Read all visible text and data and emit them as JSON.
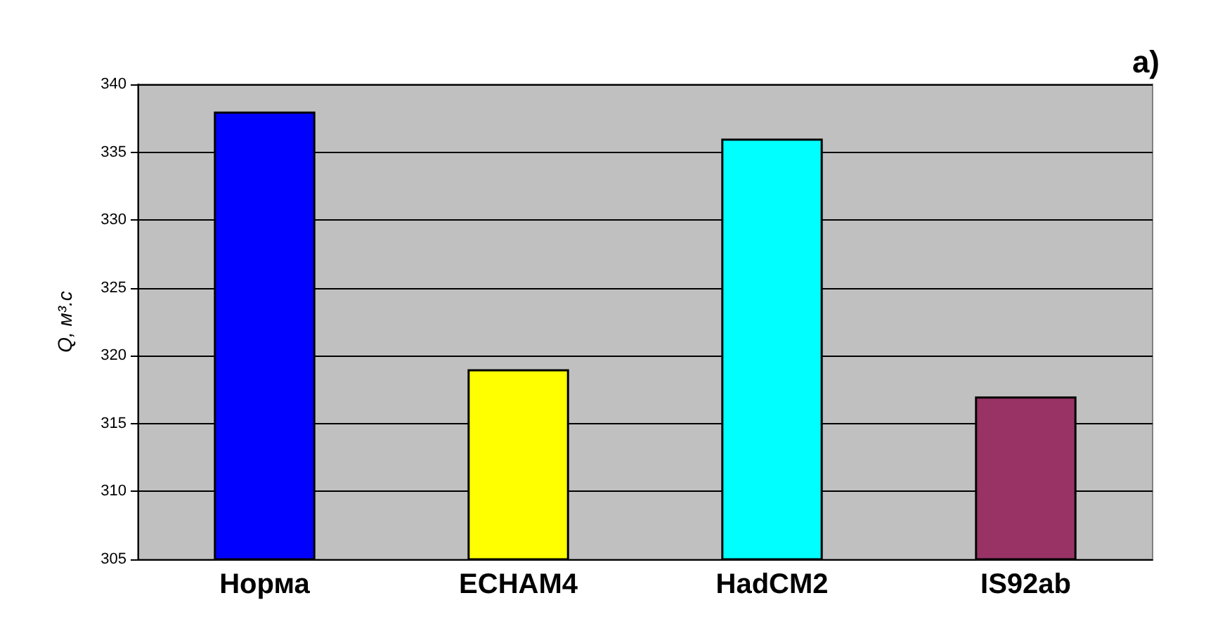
{
  "chart_data": {
    "type": "bar",
    "ylabel": "Q, м³.с",
    "categories": [
      "Норма",
      "ECHAM4",
      "HadCM2",
      "IS92ab"
    ],
    "values": [
      338,
      319,
      336,
      317
    ],
    "colors": [
      "#0000ff",
      "#ffff00",
      "#00ffff",
      "#993366"
    ],
    "ylim": [
      305,
      340
    ],
    "yticks": [
      305,
      310,
      315,
      320,
      325,
      330,
      335,
      340
    ],
    "grid": "y",
    "annotations": [
      "a)"
    ]
  }
}
